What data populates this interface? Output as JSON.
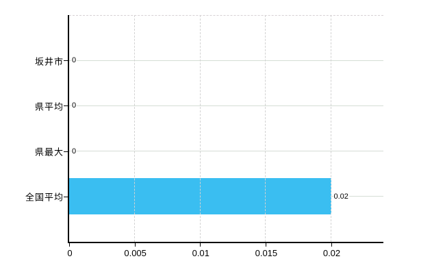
{
  "chart_data": {
    "type": "bar",
    "orientation": "horizontal",
    "title": "",
    "categories": [
      "坂井市",
      "県平均",
      "県最大",
      "全国平均"
    ],
    "values": [
      0,
      0,
      0,
      0.02
    ],
    "value_labels": [
      "0",
      "0",
      "0",
      "0.02"
    ],
    "x_tick_values": [
      0,
      0.005,
      0.01,
      0.015,
      0.02
    ],
    "x_tick_labels": [
      "0",
      "0.005",
      "0.01",
      "0.015",
      "0.02"
    ],
    "xlim": [
      0,
      0.024
    ],
    "grid": true,
    "legend": false,
    "bar_color": "#3abef1"
  },
  "colors": {
    "bar": "#3abef1",
    "axis": "#000000",
    "gridline_solid": "#d5ddd5",
    "gridline_dashed": "#d2d2d2",
    "text": "#000000",
    "background": "#ffffff"
  }
}
